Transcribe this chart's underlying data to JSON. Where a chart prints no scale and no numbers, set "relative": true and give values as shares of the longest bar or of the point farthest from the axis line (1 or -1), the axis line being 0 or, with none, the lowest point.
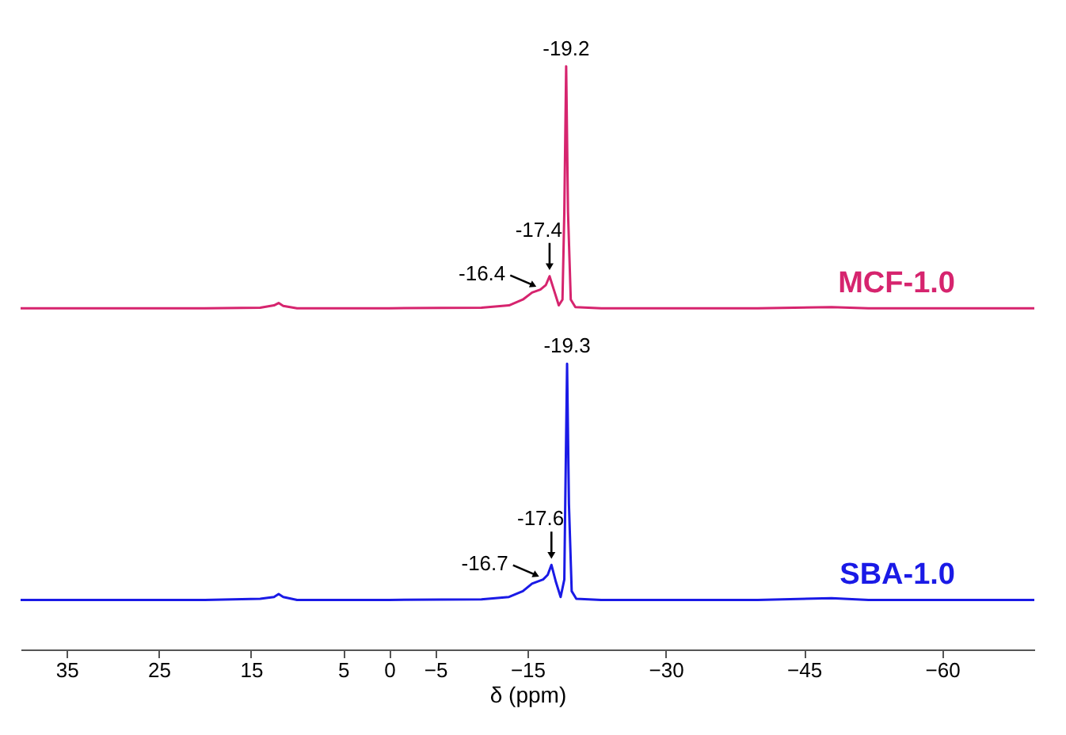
{
  "chart_data": {
    "type": "line",
    "relative": true,
    "xlabel": "δ (ppm)",
    "xlim": [
      40,
      -70
    ],
    "xticks": [
      35,
      25,
      15,
      5,
      0,
      -5,
      -15,
      -30,
      -45,
      -60
    ],
    "grid": false,
    "marker": "none",
    "line_style": "solid",
    "series": [
      {
        "name": "MCF-1.0",
        "color": "#d6246e",
        "x": [
          40,
          20,
          14,
          12.5,
          12,
          11.5,
          10,
          0,
          -10,
          -13,
          -14.5,
          -15.5,
          -16.4,
          -17.0,
          -17.4,
          -17.9,
          -18.4,
          -18.8,
          -19.0,
          -19.2,
          -19.4,
          -19.7,
          -20.2,
          -23,
          -40,
          -48,
          -52,
          -70
        ],
        "values": [
          0.585,
          0.585,
          0.586,
          0.59,
          0.594,
          0.589,
          0.585,
          0.585,
          0.586,
          0.59,
          0.6,
          0.612,
          0.617,
          0.625,
          0.64,
          0.615,
          0.59,
          0.6,
          0.75,
          1.0,
          0.75,
          0.6,
          0.587,
          0.585,
          0.585,
          0.587,
          0.585,
          0.585
        ]
      },
      {
        "name": "SBA-1.0",
        "color": "#1a1ae6",
        "x": [
          40,
          20,
          14,
          12.5,
          12,
          11.5,
          10,
          0,
          -10,
          -13,
          -14.5,
          -15.5,
          -16.7,
          -17.2,
          -17.6,
          -18.1,
          -18.6,
          -19.0,
          -19.1,
          -19.3,
          -19.5,
          -19.8,
          -20.3,
          -23,
          -40,
          -48,
          -52,
          -70
        ],
        "values": [
          0.085,
          0.085,
          0.087,
          0.09,
          0.095,
          0.09,
          0.085,
          0.085,
          0.086,
          0.09,
          0.1,
          0.113,
          0.12,
          0.128,
          0.145,
          0.115,
          0.09,
          0.12,
          0.25,
          0.49,
          0.25,
          0.1,
          0.087,
          0.085,
          0.085,
          0.088,
          0.085,
          0.085
        ]
      }
    ],
    "annotations": [
      {
        "text": "-19.2",
        "x": -19.2,
        "y": 1.0
      },
      {
        "text": "-17.4",
        "x": -17.4,
        "y": 0.64
      },
      {
        "text": "-16.4",
        "x": -16.4,
        "y": 0.617
      },
      {
        "text": "-19.3",
        "x": -19.3,
        "y": 0.49
      },
      {
        "text": "-17.6",
        "x": -17.6,
        "y": 0.145
      },
      {
        "text": "-16.7",
        "x": -16.7,
        "y": 0.12
      }
    ]
  }
}
